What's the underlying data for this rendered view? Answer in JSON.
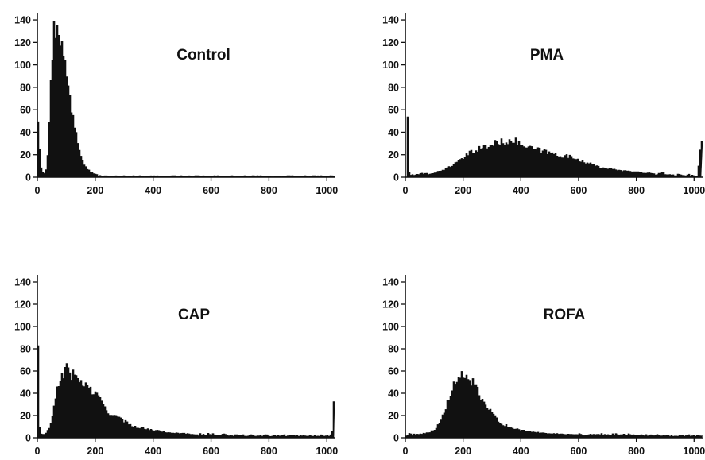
{
  "figure": {
    "layout": "2x2 grid of histograms"
  },
  "chart_data": [
    {
      "type": "area",
      "title": "Control",
      "xlabel": "",
      "ylabel": "",
      "xlim": [
        0,
        1024
      ],
      "ylim": [
        0,
        145
      ],
      "xticks": [
        "0",
        "200",
        "400",
        "600",
        "800",
        "1000"
      ],
      "yticks": [
        "0",
        "20",
        "40",
        "60",
        "80",
        "100",
        "120",
        "140"
      ],
      "grid": false,
      "x": [
        0,
        5,
        10,
        15,
        20,
        25,
        30,
        35,
        40,
        45,
        50,
        55,
        60,
        65,
        70,
        75,
        80,
        85,
        90,
        95,
        100,
        105,
        110,
        115,
        120,
        125,
        130,
        140,
        150,
        160,
        170,
        180,
        190,
        200,
        220,
        260,
        350,
        500,
        800,
        1024
      ],
      "values": [
        54,
        30,
        10,
        6,
        3,
        5,
        10,
        30,
        60,
        90,
        120,
        136,
        138,
        145,
        142,
        135,
        125,
        115,
        108,
        100,
        95,
        80,
        75,
        65,
        60,
        50,
        45,
        30,
        20,
        12,
        8,
        5,
        4,
        2,
        1,
        1,
        1,
        1,
        1,
        1
      ],
      "color": "#111111"
    },
    {
      "type": "area",
      "title": "PMA",
      "xlabel": "",
      "ylabel": "",
      "xlim": [
        0,
        1024
      ],
      "ylim": [
        0,
        145
      ],
      "xticks": [
        "0",
        "200",
        "400",
        "600",
        "800",
        "1000"
      ],
      "yticks": [
        "0",
        "20",
        "40",
        "60",
        "80",
        "100",
        "120",
        "140"
      ],
      "grid": false,
      "x": [
        0,
        5,
        10,
        15,
        20,
        40,
        60,
        80,
        100,
        120,
        140,
        160,
        180,
        200,
        220,
        240,
        260,
        280,
        300,
        320,
        340,
        360,
        380,
        400,
        420,
        440,
        460,
        480,
        500,
        520,
        540,
        560,
        580,
        600,
        620,
        640,
        660,
        680,
        700,
        720,
        740,
        760,
        780,
        800,
        820,
        840,
        860,
        880,
        900,
        920,
        940,
        960,
        980,
        1000,
        1010,
        1020,
        1024
      ],
      "values": [
        0,
        57,
        5,
        2,
        2,
        2,
        3,
        3,
        4,
        6,
        8,
        11,
        14,
        18,
        22,
        25,
        27,
        28,
        30,
        33,
        32,
        35,
        33,
        30,
        27,
        26,
        25,
        24,
        22,
        21,
        20,
        19,
        18,
        16,
        14,
        12,
        10,
        9,
        8,
        7,
        6,
        6,
        5,
        5,
        4,
        4,
        3,
        3,
        3,
        2,
        2,
        2,
        2,
        1,
        1,
        33,
        33
      ],
      "color": "#111111"
    },
    {
      "type": "area",
      "title": "CAP",
      "xlabel": "",
      "ylabel": "",
      "xlim": [
        0,
        1024
      ],
      "ylim": [
        0,
        145
      ],
      "xticks": [
        "0",
        "200",
        "400",
        "600",
        "800",
        "1000"
      ],
      "yticks": [
        "0",
        "20",
        "40",
        "60",
        "80",
        "100",
        "120",
        "140"
      ],
      "grid": false,
      "x": [
        0,
        5,
        10,
        20,
        30,
        40,
        50,
        60,
        70,
        80,
        90,
        100,
        110,
        120,
        140,
        160,
        180,
        200,
        220,
        240,
        260,
        280,
        300,
        320,
        340,
        360,
        380,
        400,
        450,
        500,
        550,
        600,
        700,
        800,
        900,
        1000,
        1015,
        1020,
        1024
      ],
      "values": [
        90,
        10,
        3,
        3,
        5,
        10,
        20,
        35,
        50,
        58,
        62,
        65,
        62,
        58,
        55,
        50,
        45,
        40,
        33,
        25,
        21,
        18,
        15,
        12,
        10,
        9,
        8,
        7,
        5,
        4,
        3,
        3,
        2,
        2,
        2,
        2,
        2,
        31,
        31
      ],
      "color": "#111111"
    },
    {
      "type": "area",
      "title": "ROFA",
      "xlabel": "",
      "ylabel": "",
      "xlim": [
        0,
        1024
      ],
      "ylim": [
        0,
        145
      ],
      "xticks": [
        "0",
        "200",
        "400",
        "600",
        "800",
        "1000"
      ],
      "yticks": [
        "0",
        "20",
        "40",
        "60",
        "80",
        "100",
        "120",
        "140"
      ],
      "grid": false,
      "x": [
        0,
        10,
        30,
        60,
        80,
        100,
        120,
        140,
        160,
        180,
        200,
        220,
        240,
        260,
        280,
        300,
        320,
        340,
        360,
        380,
        400,
        450,
        500,
        600,
        700,
        800,
        900,
        1000,
        1024
      ],
      "values": [
        2,
        3,
        3,
        4,
        5,
        8,
        15,
        30,
        45,
        55,
        58,
        55,
        48,
        35,
        28,
        22,
        16,
        12,
        10,
        8,
        7,
        5,
        4,
        3,
        3,
        3,
        2,
        2,
        2
      ],
      "color": "#111111"
    }
  ]
}
